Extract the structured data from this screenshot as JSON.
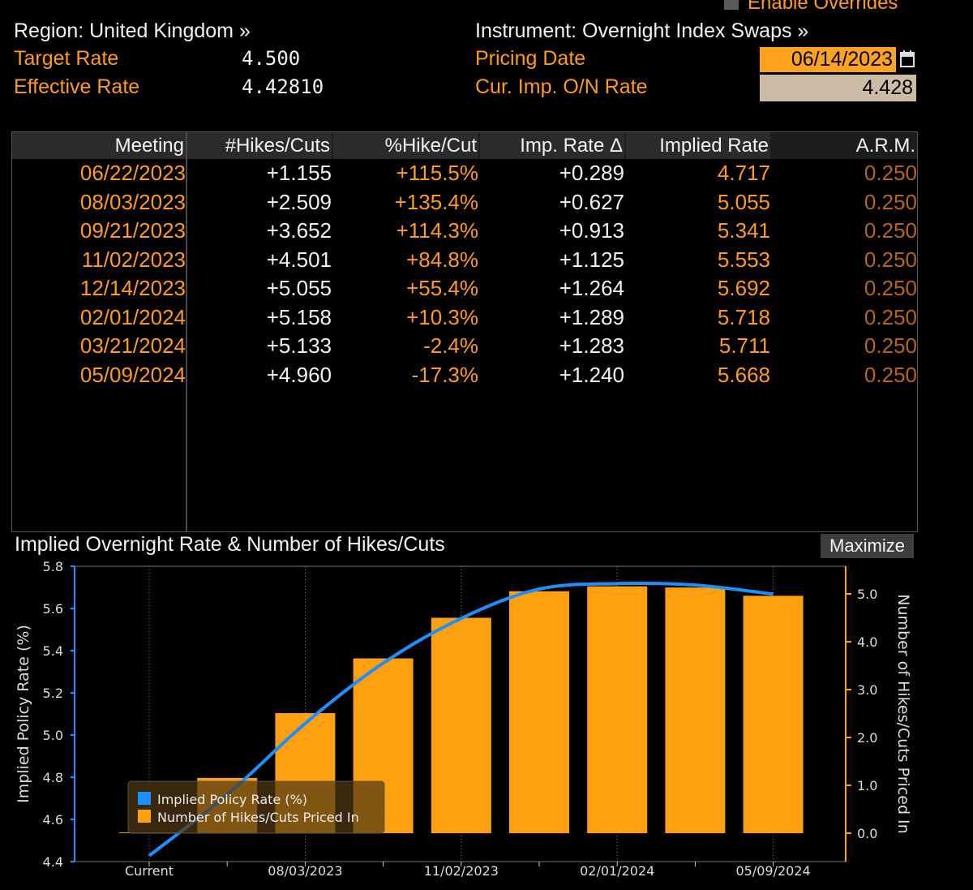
{
  "overrides": {
    "label": "Enable Overrides",
    "checked": false
  },
  "header": {
    "region": "Region: United Kingdom »",
    "instrument": "Instrument: Overnight Index Swaps »",
    "target_rate_label": "Target Rate",
    "target_rate_value": "4.500",
    "effective_rate_label": "Effective Rate",
    "effective_rate_value": "4.42810",
    "pricing_date_label": "Pricing Date",
    "pricing_date_value": "06/14/2023",
    "cur_imp_label": "Cur. Imp. O/N Rate",
    "cur_imp_value": "4.428"
  },
  "table": {
    "columns": [
      "Meeting",
      "#Hikes/Cuts",
      "%Hike/Cut",
      "Imp. Rate Δ",
      "Implied Rate",
      "A.R.M."
    ],
    "rows": [
      [
        "06/22/2023",
        "+1.155",
        "+115.5%",
        "+0.289",
        "4.717",
        "0.250"
      ],
      [
        "08/03/2023",
        "+2.509",
        "+135.4%",
        "+0.627",
        "5.055",
        "0.250"
      ],
      [
        "09/21/2023",
        "+3.652",
        "+114.3%",
        "+0.913",
        "5.341",
        "0.250"
      ],
      [
        "11/02/2023",
        "+4.501",
        "+84.8%",
        "+1.125",
        "5.553",
        "0.250"
      ],
      [
        "12/14/2023",
        "+5.055",
        "+55.4%",
        "+1.264",
        "5.692",
        "0.250"
      ],
      [
        "02/01/2024",
        "+5.158",
        "+10.3%",
        "+1.289",
        "5.718",
        "0.250"
      ],
      [
        "03/21/2024",
        "+5.133",
        "-2.4%",
        "+1.283",
        "5.711",
        "0.250"
      ],
      [
        "05/09/2024",
        "+4.960",
        "-17.3%",
        "+1.240",
        "5.668",
        "0.250"
      ]
    ]
  },
  "chart_panel": {
    "title": "Implied Overnight Rate & Number of Hikes/Cuts",
    "maximize_label": "Maximize"
  },
  "chart_data": {
    "type": "bar",
    "categories": [
      "Current",
      "06/22/2023",
      "08/03/2023",
      "09/21/2023",
      "11/02/2023",
      "12/14/2023",
      "02/01/2024",
      "03/21/2024",
      "05/09/2024"
    ],
    "x_tick_labels": [
      "Current",
      "08/03/2023",
      "11/02/2023",
      "02/01/2024",
      "05/09/2024"
    ],
    "series": [
      {
        "name": "Implied Policy Rate (%)",
        "type": "line",
        "axis": "left",
        "color": "#1e8fff",
        "values": [
          4.428,
          4.717,
          5.055,
          5.341,
          5.553,
          5.692,
          5.718,
          5.711,
          5.668
        ]
      },
      {
        "name": "Number of Hikes/Cuts Priced In",
        "type": "bar",
        "axis": "right",
        "color": "#ffa010",
        "values": [
          0,
          1.155,
          2.509,
          3.652,
          4.501,
          5.055,
          5.158,
          5.133,
          4.96
        ]
      }
    ],
    "ylabel": "Implied Policy Rate (%)",
    "ylabel_right": "Number of Hikes/Cuts Priced In",
    "ylim": [
      4.4,
      5.8
    ],
    "yticks": [
      "4.4",
      "4.6",
      "4.8",
      "5.0",
      "5.2",
      "5.4",
      "5.6",
      "5.8"
    ],
    "ylim_right": [
      0,
      5.0
    ],
    "yticks_right": [
      "0.0",
      "1.0",
      "2.0",
      "3.0",
      "4.0",
      "5.0"
    ],
    "legend_position": "bottom-left",
    "grid": "vertical dotted"
  }
}
